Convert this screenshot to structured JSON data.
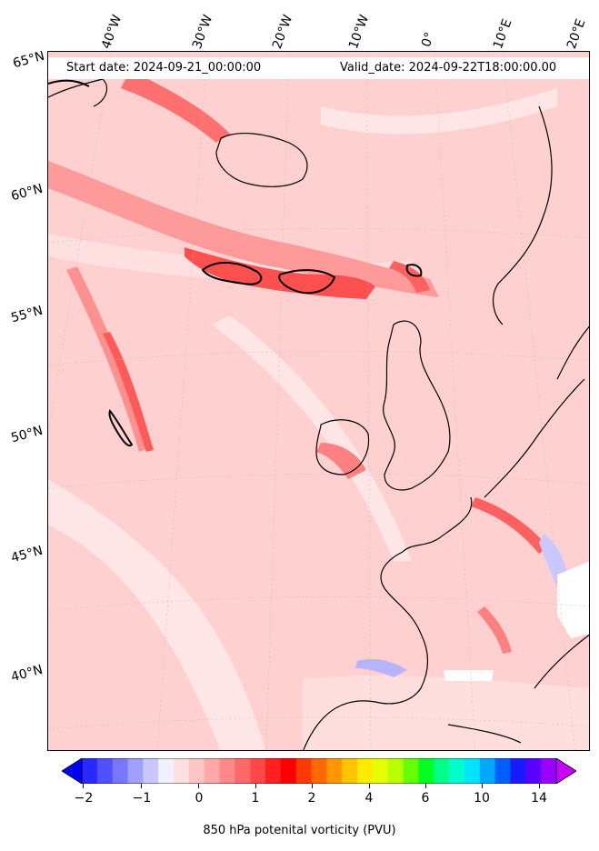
{
  "header": {
    "start_date": "Start date: 2024-09-21_00:00:00",
    "valid_date": "Valid_date: 2024-09-22T18:00:00.00"
  },
  "longitude_labels": [
    "40°W",
    "30°W",
    "20°W",
    "10°W",
    "0°",
    "10°E",
    "20°E"
  ],
  "latitude_labels": [
    "65°N",
    "60°N",
    "55°N",
    "50°N",
    "45°N",
    "40°N"
  ],
  "colorbar": {
    "ticks": [
      "−2",
      "−1",
      "0",
      "1",
      "2",
      "4",
      "6",
      "10",
      "14"
    ],
    "label": "850 hPa potenital vorticity (PVU)",
    "colors": [
      "#0000ff",
      "#2828ff",
      "#5050ff",
      "#7878ff",
      "#a0a0ff",
      "#c8c8ff",
      "#f0f0ff",
      "#ffe0e0",
      "#ffc4c4",
      "#ffa8a8",
      "#ff8888",
      "#ff6868",
      "#ff4848",
      "#ff2020",
      "#ff0000",
      "#ff3a00",
      "#ff6a00",
      "#ff9800",
      "#ffc400",
      "#ffea00",
      "#e6ff00",
      "#b8ff00",
      "#66ff00",
      "#00ff22",
      "#00ff88",
      "#00ffcc",
      "#00e4ff",
      "#00a8ff",
      "#0060ff",
      "#1a1aff",
      "#5a00ff",
      "#9a00ff",
      "#c800ff"
    ]
  }
}
